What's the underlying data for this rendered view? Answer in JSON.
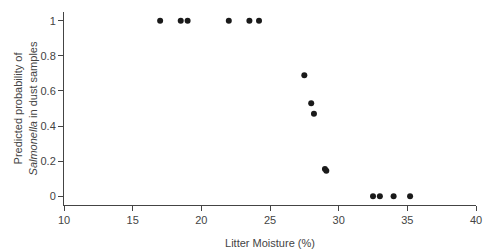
{
  "chart_data": {
    "type": "scatter",
    "x": [
      17.0,
      18.5,
      19.0,
      22.0,
      23.5,
      24.2,
      27.5,
      28.0,
      28.2,
      29.0,
      29.1,
      32.5,
      33.0,
      34.0,
      35.2
    ],
    "values": [
      1.0,
      1.0,
      1.0,
      1.0,
      1.0,
      1.0,
      0.69,
      0.53,
      0.47,
      0.155,
      0.145,
      0.0,
      0.0,
      0.0,
      0.0
    ],
    "color": "#1a1a1a",
    "xlabel": "Litter Moisture (%)",
    "ylabel": [
      "Predicted probability of",
      "Salmonella",
      " in dust samples"
    ],
    "xlim": [
      10,
      40
    ],
    "ylim": [
      -0.05,
      1.05
    ],
    "xticks": [
      10,
      15,
      20,
      25,
      30,
      35,
      40
    ],
    "yticks": [
      0,
      0.2,
      0.4,
      0.6,
      0.8,
      1
    ],
    "grid": false
  }
}
